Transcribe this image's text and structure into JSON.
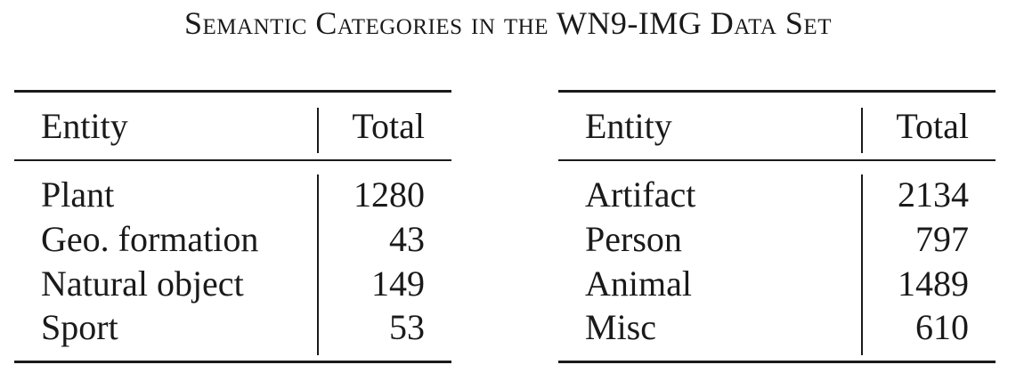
{
  "caption": "Semantic Categories in the WN9-IMG Data Set",
  "tables": {
    "left": {
      "header": {
        "entity": "Entity",
        "total": "Total"
      },
      "rows": [
        {
          "entity": "Plant",
          "total": "1280"
        },
        {
          "entity": "Geo. formation",
          "total": "43"
        },
        {
          "entity": "Natural object",
          "total": "149"
        },
        {
          "entity": "Sport",
          "total": "53"
        }
      ]
    },
    "right": {
      "header": {
        "entity": "Entity",
        "total": "Total"
      },
      "rows": [
        {
          "entity": "Artifact",
          "total": "2134"
        },
        {
          "entity": "Person",
          "total": "797"
        },
        {
          "entity": "Animal",
          "total": "1489"
        },
        {
          "entity": "Misc",
          "total": "610"
        }
      ]
    }
  }
}
